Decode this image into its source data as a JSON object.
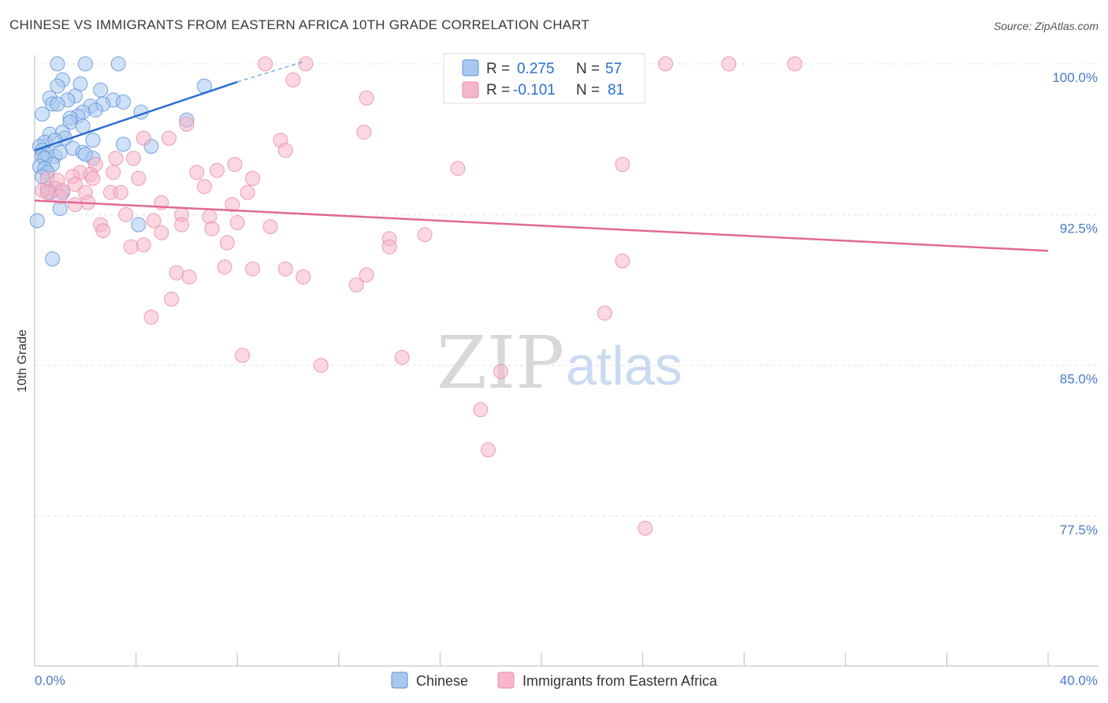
{
  "header": {
    "title": "CHINESE VS IMMIGRANTS FROM EASTERN AFRICA 10TH GRADE CORRELATION CHART",
    "source": "Source: ZipAtlas.com"
  },
  "watermark": {
    "zip": "ZIP",
    "atlas": "atlas"
  },
  "legend": {
    "r_label": "R =",
    "n_label": "N =",
    "rows": [
      {
        "r": "0.275",
        "n": "57"
      },
      {
        "r": "-0.101",
        "n": "81"
      }
    ]
  },
  "chart_data": {
    "type": "scatter",
    "title": "CHINESE VS IMMIGRANTS FROM EASTERN AFRICA 10TH GRADE CORRELATION CHART",
    "xlabel": "",
    "ylabel": "10th Grade",
    "xlim": [
      0,
      40
    ],
    "ylim": [
      70,
      100.3
    ],
    "x_tick_labels": [
      "0.0%",
      "40.0%"
    ],
    "y_ticks": [
      {
        "value": 100,
        "label": "100.0%"
      },
      {
        "value": 92.5,
        "label": "92.5%"
      },
      {
        "value": 85,
        "label": "85.0%"
      },
      {
        "value": 77.5,
        "label": "77.5%"
      }
    ],
    "grid": true,
    "legend_position": "top-center",
    "colors": {
      "chinese_fill": "#a8c8f0",
      "chinese_stroke": "#5b8fd6",
      "chinese_line": "#2a6fcf",
      "eastafrica_fill": "#f6b6c9",
      "eastafrica_stroke": "#e98aa8",
      "eastafrica_line": "#e06a93",
      "value_text": "#2a6fcf"
    },
    "series": [
      {
        "name": "Chinese",
        "r": 0.275,
        "n": 57,
        "trend": {
          "x": [
            0,
            8
          ],
          "y": [
            95.7,
            99.1
          ]
        },
        "trend_dashed": {
          "x": [
            8,
            10.6
          ],
          "y": [
            99.1,
            100.1
          ]
        },
        "points": [
          [
            0.9,
            100.0
          ],
          [
            2.0,
            100.0
          ],
          [
            3.3,
            100.0
          ],
          [
            1.1,
            99.2
          ],
          [
            1.8,
            99.0
          ],
          [
            0.9,
            98.9
          ],
          [
            2.6,
            98.7
          ],
          [
            6.7,
            98.9
          ],
          [
            0.6,
            98.3
          ],
          [
            1.6,
            98.4
          ],
          [
            1.3,
            98.2
          ],
          [
            3.1,
            98.2
          ],
          [
            3.5,
            98.1
          ],
          [
            0.7,
            98.0
          ],
          [
            0.9,
            98.0
          ],
          [
            2.2,
            97.9
          ],
          [
            2.7,
            98.0
          ],
          [
            2.4,
            97.7
          ],
          [
            0.3,
            97.5
          ],
          [
            4.2,
            97.6
          ],
          [
            1.9,
            97.6
          ],
          [
            1.7,
            97.4
          ],
          [
            1.4,
            97.3
          ],
          [
            6.0,
            97.2
          ],
          [
            1.4,
            97.1
          ],
          [
            1.9,
            96.9
          ],
          [
            0.6,
            96.5
          ],
          [
            1.1,
            96.6
          ],
          [
            1.2,
            96.3
          ],
          [
            2.3,
            96.2
          ],
          [
            0.4,
            96.1
          ],
          [
            0.2,
            95.9
          ],
          [
            0.3,
            95.7
          ],
          [
            1.5,
            95.8
          ],
          [
            3.5,
            96.0
          ],
          [
            4.6,
            95.9
          ],
          [
            0.5,
            95.5
          ],
          [
            0.8,
            95.4
          ],
          [
            1.0,
            95.6
          ],
          [
            1.9,
            95.6
          ],
          [
            0.3,
            95.4
          ],
          [
            0.4,
            95.3
          ],
          [
            2.3,
            95.3
          ],
          [
            0.7,
            95.0
          ],
          [
            0.2,
            94.9
          ],
          [
            0.4,
            94.8
          ],
          [
            0.5,
            94.6
          ],
          [
            0.3,
            94.4
          ],
          [
            0.5,
            93.8
          ],
          [
            0.6,
            93.6
          ],
          [
            1.1,
            93.6
          ],
          [
            0.1,
            92.2
          ],
          [
            1.0,
            92.8
          ],
          [
            4.1,
            92.0
          ],
          [
            0.7,
            90.3
          ],
          [
            2.0,
            95.5
          ],
          [
            0.8,
            96.2
          ]
        ]
      },
      {
        "name": "Immigrants from Eastern Africa",
        "r": -0.101,
        "n": 81,
        "trend": {
          "x": [
            0,
            40
          ],
          "y": [
            93.2,
            90.7
          ]
        },
        "points": [
          [
            9.1,
            100.0
          ],
          [
            10.7,
            100.0
          ],
          [
            24.9,
            100.0
          ],
          [
            27.4,
            100.0
          ],
          [
            30.0,
            100.0
          ],
          [
            10.2,
            99.2
          ],
          [
            13.1,
            98.3
          ],
          [
            6.0,
            97.0
          ],
          [
            13.0,
            96.6
          ],
          [
            4.3,
            96.3
          ],
          [
            5.3,
            96.3
          ],
          [
            9.7,
            96.2
          ],
          [
            9.9,
            95.7
          ],
          [
            3.2,
            95.3
          ],
          [
            3.9,
            95.3
          ],
          [
            7.9,
            95.0
          ],
          [
            2.4,
            95.0
          ],
          [
            23.2,
            95.0
          ],
          [
            16.7,
            94.8
          ],
          [
            7.2,
            94.7
          ],
          [
            6.4,
            94.6
          ],
          [
            3.1,
            94.6
          ],
          [
            1.8,
            94.6
          ],
          [
            2.2,
            94.5
          ],
          [
            1.5,
            94.4
          ],
          [
            0.5,
            94.3
          ],
          [
            0.9,
            94.2
          ],
          [
            2.3,
            94.3
          ],
          [
            4.1,
            94.3
          ],
          [
            8.6,
            94.3
          ],
          [
            1.6,
            94.0
          ],
          [
            0.8,
            93.8
          ],
          [
            6.7,
            93.9
          ],
          [
            1.1,
            93.7
          ],
          [
            0.3,
            93.7
          ],
          [
            0.5,
            93.6
          ],
          [
            2.0,
            93.6
          ],
          [
            3.0,
            93.6
          ],
          [
            3.4,
            93.6
          ],
          [
            8.4,
            93.6
          ],
          [
            1.0,
            93.4
          ],
          [
            5.0,
            93.1
          ],
          [
            2.1,
            93.1
          ],
          [
            1.6,
            93.0
          ],
          [
            7.8,
            93.0
          ],
          [
            3.6,
            92.5
          ],
          [
            5.8,
            92.5
          ],
          [
            6.9,
            92.4
          ],
          [
            4.7,
            92.2
          ],
          [
            8.0,
            92.1
          ],
          [
            2.6,
            92.0
          ],
          [
            5.8,
            92.0
          ],
          [
            7.0,
            91.8
          ],
          [
            9.3,
            91.9
          ],
          [
            2.7,
            91.7
          ],
          [
            5.0,
            91.6
          ],
          [
            15.4,
            91.5
          ],
          [
            14.0,
            91.3
          ],
          [
            7.6,
            91.1
          ],
          [
            4.3,
            91.0
          ],
          [
            3.8,
            90.9
          ],
          [
            14.0,
            90.9
          ],
          [
            23.2,
            90.2
          ],
          [
            7.5,
            89.9
          ],
          [
            8.6,
            89.8
          ],
          [
            9.9,
            89.8
          ],
          [
            5.6,
            89.6
          ],
          [
            6.1,
            89.4
          ],
          [
            10.6,
            89.4
          ],
          [
            13.1,
            89.5
          ],
          [
            12.7,
            89.0
          ],
          [
            5.4,
            88.3
          ],
          [
            22.5,
            87.6
          ],
          [
            4.6,
            87.4
          ],
          [
            8.2,
            85.5
          ],
          [
            14.5,
            85.4
          ],
          [
            11.3,
            85.0
          ],
          [
            18.4,
            84.7
          ],
          [
            17.6,
            82.8
          ],
          [
            17.9,
            80.8
          ],
          [
            24.1,
            76.9
          ]
        ]
      }
    ]
  },
  "bottom_legend": [
    "Chinese",
    "Immigrants from Eastern Africa"
  ]
}
